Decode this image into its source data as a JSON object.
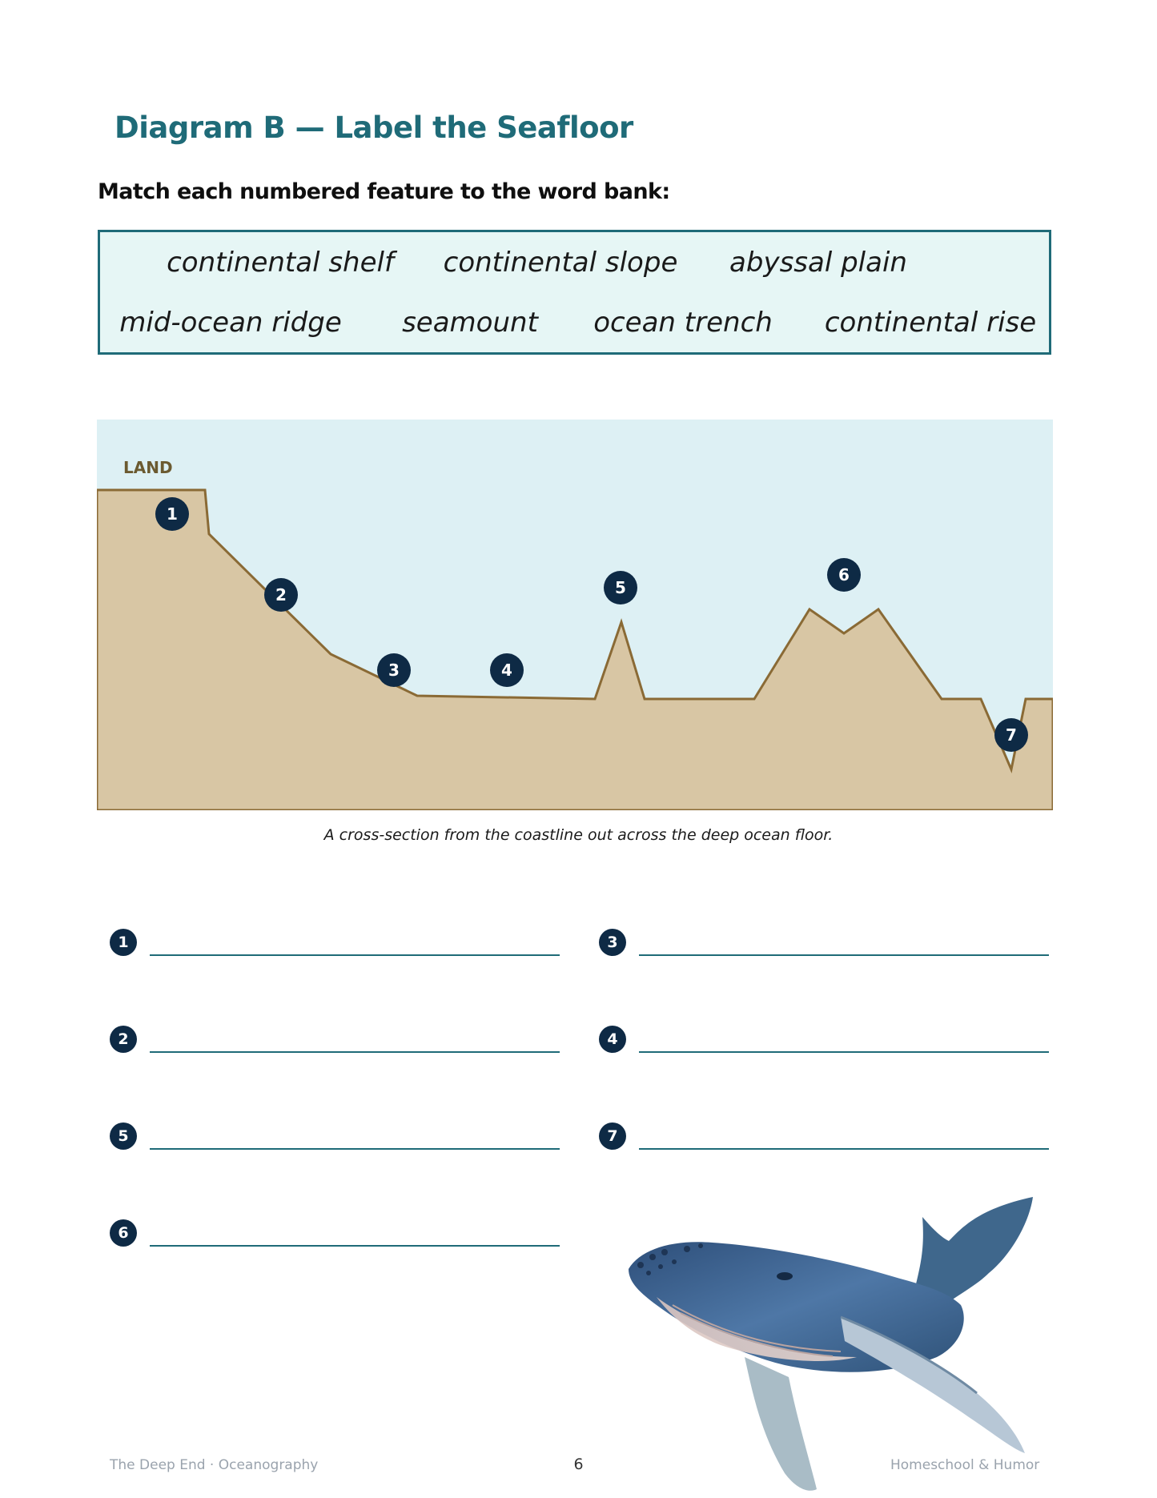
{
  "title": "Diagram B — Label the Seafloor",
  "instructions": "Match each numbered feature to the word bank:",
  "word_bank": {
    "row1": [
      "continental shelf",
      "continental slope",
      "abyssal plain"
    ],
    "row2": [
      "mid-ocean ridge",
      "seamount",
      "ocean trench",
      "continental rise"
    ]
  },
  "diagram": {
    "land_label": "LAND",
    "markers": [
      "1",
      "2",
      "3",
      "4",
      "5",
      "6",
      "7"
    ],
    "colors": {
      "water": "#ddf0f4",
      "land": "#d8c6a4",
      "outline": "#8a6a35",
      "marker": "#0e2a45",
      "land_label": "#6b5a30"
    }
  },
  "caption": "A cross-section from the coastline out across the deep ocean floor.",
  "answers": {
    "left": [
      "1",
      "2",
      "5",
      "6"
    ],
    "right": [
      "3",
      "4",
      "7"
    ]
  },
  "footer": {
    "left": "The Deep End · Oceanography",
    "page": "6",
    "right": "Homeschool & Humor"
  },
  "illustration": "humpback-whale-watercolor"
}
